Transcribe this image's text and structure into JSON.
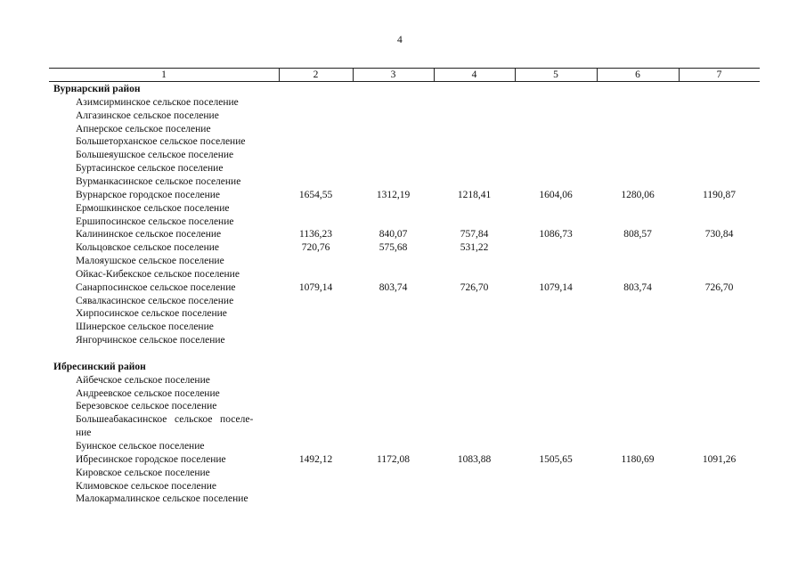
{
  "page_number": "4",
  "table": {
    "header": [
      "1",
      "2",
      "3",
      "4",
      "5",
      "6",
      "7"
    ],
    "sections": [
      {
        "title": "Вурнарский район",
        "rows": [
          {
            "name": "Азимсирминское сельское поселение"
          },
          {
            "name": "Алгазинское сельское поселение"
          },
          {
            "name": "Апнерское сельское поселение"
          },
          {
            "name": "Большеторханское сельское поселение"
          },
          {
            "name": "Большеяушское сельское поселение"
          },
          {
            "name": "Буртасинское сельское поселение"
          },
          {
            "name": "Вурманкасинское сельское поселение"
          },
          {
            "name": "Вурнарское городское поселение",
            "values": [
              "1654,55",
              "1312,19",
              "1218,41",
              "1604,06",
              "1280,06",
              "1190,87"
            ]
          },
          {
            "name": "Ермошкинское сельское поселение"
          },
          {
            "name": "Ершипосинское сельское поселение"
          },
          {
            "name": "Калининское сельское поселение",
            "values": [
              "1136,23",
              "840,07",
              "757,84",
              "1086,73",
              "808,57",
              "730,84"
            ]
          },
          {
            "name": "Кольцовское сельское поселение",
            "values": [
              "720,76",
              "575,68",
              "531,22"
            ]
          },
          {
            "name": "Малояушское сельское поселение"
          },
          {
            "name": "Ойкас-Кибекское сельское поселение"
          },
          {
            "name": "Санарпосинское сельское поселение",
            "values": [
              "1079,14",
              "803,74",
              "726,70",
              "1079,14",
              "803,74",
              "726,70"
            ]
          },
          {
            "name": "Сявалкасинское сельское поселение"
          },
          {
            "name": "Хирпосинское сельское поселение"
          },
          {
            "name": "Шинерское сельское поселение"
          },
          {
            "name": "Янгорчинское сельское поселение"
          }
        ]
      },
      {
        "title": "Ибресинский район",
        "rows": [
          {
            "name": "Айбечское сельское поселение"
          },
          {
            "name": "Андреевское сельское поселение"
          },
          {
            "name": "Березовское сельское поселение"
          },
          {
            "name": [
              "Большеабакасинское   сельское   поселе-",
              "ние"
            ]
          },
          {
            "name": "Буинское сельское поселение"
          },
          {
            "name": "Ибресинское городское поселение",
            "values": [
              "1492,12",
              "1172,08",
              "1083,88",
              "1505,65",
              "1180,69",
              "1091,26"
            ]
          },
          {
            "name": "Кировское сельское поселение"
          },
          {
            "name": "Климовское сельское поселение"
          },
          {
            "name": "Малокармалинское сельское поселение"
          }
        ]
      }
    ]
  }
}
